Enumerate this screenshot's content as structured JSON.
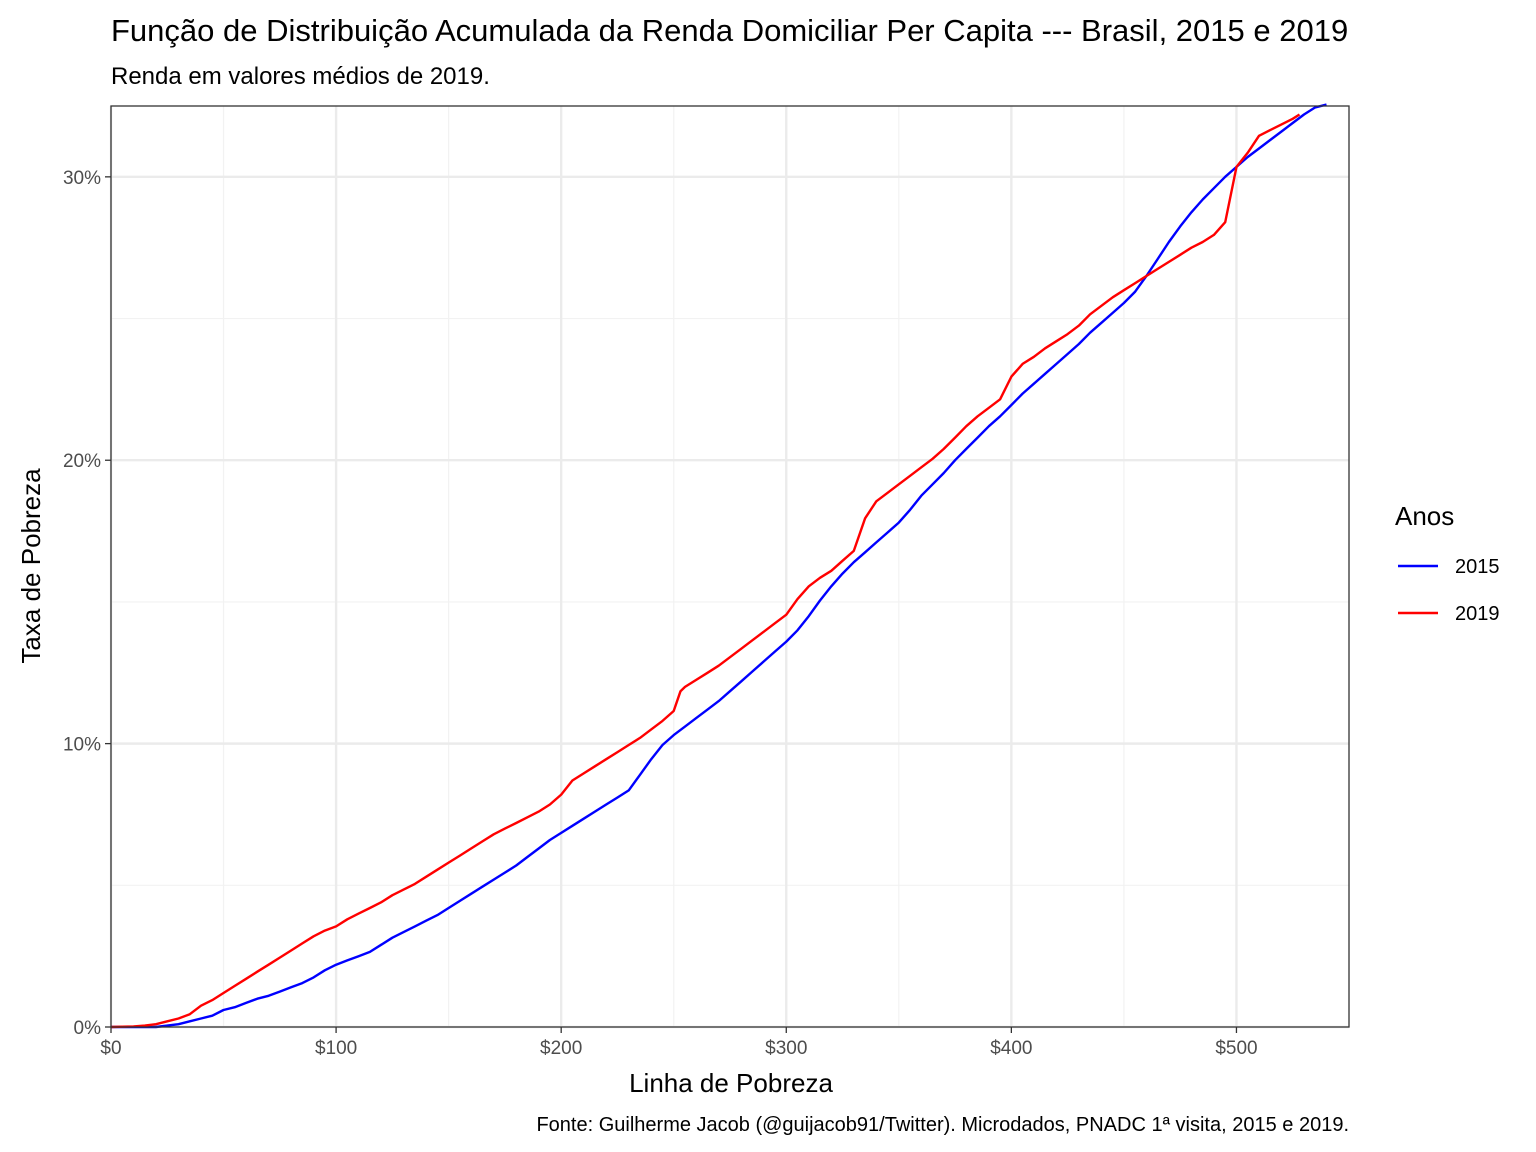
{
  "chart_data": {
    "type": "line",
    "title": "Função de Distribuição Acumulada da Renda Domiciliar Per Capita --- Brasil, 2015 e 2019",
    "subtitle": "Renda em valores médios de 2019.",
    "xlabel": "Linha de Pobreza",
    "ylabel": "Taxa de Pobreza",
    "caption": "Fonte: Guilherme Jacob (@guijacob91/Twitter). Microdados, PNADC 1ª visita, 2015 e 2019.",
    "xlim": [
      0,
      550
    ],
    "ylim": [
      0,
      32.5
    ],
    "x_ticks": [
      0,
      100,
      200,
      300,
      400,
      500
    ],
    "x_tick_labels": [
      "$0",
      "$100",
      "$200",
      "$300",
      "$400",
      "$500"
    ],
    "y_ticks": [
      0,
      10,
      20,
      30
    ],
    "y_tick_labels": [
      "0%",
      "10%",
      "20%",
      "30%"
    ],
    "y_minor_ticks": [
      5,
      15,
      25
    ],
    "x_minor_ticks": [
      50,
      150,
      250,
      350,
      450
    ],
    "grid": true,
    "legend": {
      "title": "Anos",
      "placement": "right"
    },
    "series": [
      {
        "name": "2015",
        "color": "#0000ff",
        "points": [
          [
            0,
            0
          ],
          [
            10,
            0
          ],
          [
            20,
            0
          ],
          [
            30,
            0.1
          ],
          [
            35,
            0.2
          ],
          [
            40,
            0.3
          ],
          [
            45,
            0.4
          ],
          [
            50,
            0.6
          ],
          [
            55,
            0.7
          ],
          [
            60,
            0.85
          ],
          [
            65,
            1.0
          ],
          [
            70,
            1.1
          ],
          [
            75,
            1.25
          ],
          [
            80,
            1.4
          ],
          [
            85,
            1.55
          ],
          [
            90,
            1.75
          ],
          [
            95,
            2.0
          ],
          [
            100,
            2.2
          ],
          [
            105,
            2.35
          ],
          [
            110,
            2.5
          ],
          [
            115,
            2.65
          ],
          [
            120,
            2.9
          ],
          [
            125,
            3.15
          ],
          [
            130,
            3.35
          ],
          [
            135,
            3.55
          ],
          [
            140,
            3.75
          ],
          [
            145,
            3.95
          ],
          [
            150,
            4.2
          ],
          [
            155,
            4.45
          ],
          [
            160,
            4.7
          ],
          [
            165,
            4.95
          ],
          [
            170,
            5.2
          ],
          [
            175,
            5.45
          ],
          [
            180,
            5.7
          ],
          [
            185,
            6.0
          ],
          [
            190,
            6.3
          ],
          [
            195,
            6.6
          ],
          [
            200,
            6.85
          ],
          [
            205,
            7.1
          ],
          [
            210,
            7.35
          ],
          [
            215,
            7.6
          ],
          [
            220,
            7.85
          ],
          [
            225,
            8.1
          ],
          [
            230,
            8.35
          ],
          [
            235,
            8.9
          ],
          [
            240,
            9.45
          ],
          [
            245,
            9.95
          ],
          [
            250,
            10.3
          ],
          [
            255,
            10.6
          ],
          [
            260,
            10.9
          ],
          [
            265,
            11.2
          ],
          [
            270,
            11.5
          ],
          [
            275,
            11.85
          ],
          [
            280,
            12.2
          ],
          [
            285,
            12.55
          ],
          [
            290,
            12.9
          ],
          [
            295,
            13.25
          ],
          [
            300,
            13.6
          ],
          [
            305,
            14.0
          ],
          [
            310,
            14.5
          ],
          [
            315,
            15.05
          ],
          [
            320,
            15.55
          ],
          [
            325,
            16.0
          ],
          [
            330,
            16.4
          ],
          [
            335,
            16.75
          ],
          [
            340,
            17.1
          ],
          [
            345,
            17.45
          ],
          [
            350,
            17.8
          ],
          [
            355,
            18.25
          ],
          [
            360,
            18.75
          ],
          [
            365,
            19.15
          ],
          [
            370,
            19.55
          ],
          [
            375,
            20.0
          ],
          [
            380,
            20.4
          ],
          [
            385,
            20.8
          ],
          [
            390,
            21.2
          ],
          [
            395,
            21.55
          ],
          [
            400,
            21.95
          ],
          [
            405,
            22.35
          ],
          [
            410,
            22.7
          ],
          [
            415,
            23.05
          ],
          [
            420,
            23.4
          ],
          [
            425,
            23.75
          ],
          [
            430,
            24.1
          ],
          [
            435,
            24.5
          ],
          [
            440,
            24.85
          ],
          [
            445,
            25.2
          ],
          [
            450,
            25.55
          ],
          [
            455,
            25.95
          ],
          [
            460,
            26.5
          ],
          [
            465,
            27.1
          ],
          [
            470,
            27.7
          ],
          [
            475,
            28.25
          ],
          [
            480,
            28.75
          ],
          [
            485,
            29.2
          ],
          [
            490,
            29.6
          ],
          [
            495,
            30.0
          ],
          [
            500,
            30.35
          ],
          [
            505,
            30.7
          ],
          [
            510,
            31.0
          ],
          [
            515,
            31.3
          ],
          [
            520,
            31.6
          ],
          [
            525,
            31.9
          ],
          [
            530,
            32.2
          ],
          [
            535,
            32.45
          ],
          [
            540,
            32.55
          ]
        ]
      },
      {
        "name": "2019",
        "color": "#ff0000",
        "points": [
          [
            0,
            0
          ],
          [
            10,
            0.02
          ],
          [
            15,
            0.05
          ],
          [
            20,
            0.1
          ],
          [
            25,
            0.2
          ],
          [
            30,
            0.3
          ],
          [
            35,
            0.45
          ],
          [
            40,
            0.75
          ],
          [
            45,
            0.95
          ],
          [
            50,
            1.2
          ],
          [
            55,
            1.45
          ],
          [
            60,
            1.7
          ],
          [
            65,
            1.95
          ],
          [
            70,
            2.2
          ],
          [
            75,
            2.45
          ],
          [
            80,
            2.7
          ],
          [
            85,
            2.95
          ],
          [
            90,
            3.2
          ],
          [
            95,
            3.4
          ],
          [
            100,
            3.55
          ],
          [
            105,
            3.8
          ],
          [
            110,
            4.0
          ],
          [
            115,
            4.2
          ],
          [
            120,
            4.4
          ],
          [
            125,
            4.65
          ],
          [
            130,
            4.85
          ],
          [
            135,
            5.05
          ],
          [
            140,
            5.3
          ],
          [
            145,
            5.55
          ],
          [
            150,
            5.8
          ],
          [
            155,
            6.05
          ],
          [
            160,
            6.3
          ],
          [
            165,
            6.55
          ],
          [
            170,
            6.8
          ],
          [
            175,
            7.0
          ],
          [
            180,
            7.2
          ],
          [
            185,
            7.4
          ],
          [
            190,
            7.6
          ],
          [
            195,
            7.85
          ],
          [
            200,
            8.2
          ],
          [
            205,
            8.7
          ],
          [
            210,
            8.95
          ],
          [
            215,
            9.2
          ],
          [
            220,
            9.45
          ],
          [
            225,
            9.7
          ],
          [
            230,
            9.95
          ],
          [
            235,
            10.2
          ],
          [
            240,
            10.5
          ],
          [
            245,
            10.8
          ],
          [
            250,
            11.15
          ],
          [
            253,
            11.85
          ],
          [
            255,
            12.0
          ],
          [
            260,
            12.25
          ],
          [
            265,
            12.5
          ],
          [
            270,
            12.75
          ],
          [
            275,
            13.05
          ],
          [
            280,
            13.35
          ],
          [
            285,
            13.65
          ],
          [
            290,
            13.95
          ],
          [
            295,
            14.25
          ],
          [
            300,
            14.55
          ],
          [
            305,
            15.1
          ],
          [
            310,
            15.55
          ],
          [
            315,
            15.85
          ],
          [
            320,
            16.1
          ],
          [
            325,
            16.45
          ],
          [
            330,
            16.8
          ],
          [
            335,
            17.95
          ],
          [
            340,
            18.55
          ],
          [
            345,
            18.85
          ],
          [
            350,
            19.15
          ],
          [
            355,
            19.45
          ],
          [
            360,
            19.75
          ],
          [
            365,
            20.05
          ],
          [
            370,
            20.4
          ],
          [
            375,
            20.8
          ],
          [
            380,
            21.2
          ],
          [
            385,
            21.55
          ],
          [
            390,
            21.85
          ],
          [
            395,
            22.15
          ],
          [
            400,
            22.95
          ],
          [
            405,
            23.4
          ],
          [
            410,
            23.65
          ],
          [
            415,
            23.95
          ],
          [
            420,
            24.2
          ],
          [
            425,
            24.45
          ],
          [
            430,
            24.75
          ],
          [
            435,
            25.15
          ],
          [
            440,
            25.45
          ],
          [
            445,
            25.75
          ],
          [
            450,
            26.0
          ],
          [
            455,
            26.25
          ],
          [
            460,
            26.5
          ],
          [
            465,
            26.75
          ],
          [
            470,
            27.0
          ],
          [
            475,
            27.25
          ],
          [
            480,
            27.5
          ],
          [
            485,
            27.7
          ],
          [
            490,
            27.95
          ],
          [
            495,
            28.4
          ],
          [
            500,
            30.35
          ],
          [
            505,
            30.85
          ],
          [
            510,
            31.45
          ],
          [
            515,
            31.65
          ],
          [
            520,
            31.85
          ],
          [
            525,
            32.05
          ],
          [
            528,
            32.2
          ]
        ]
      }
    ]
  }
}
